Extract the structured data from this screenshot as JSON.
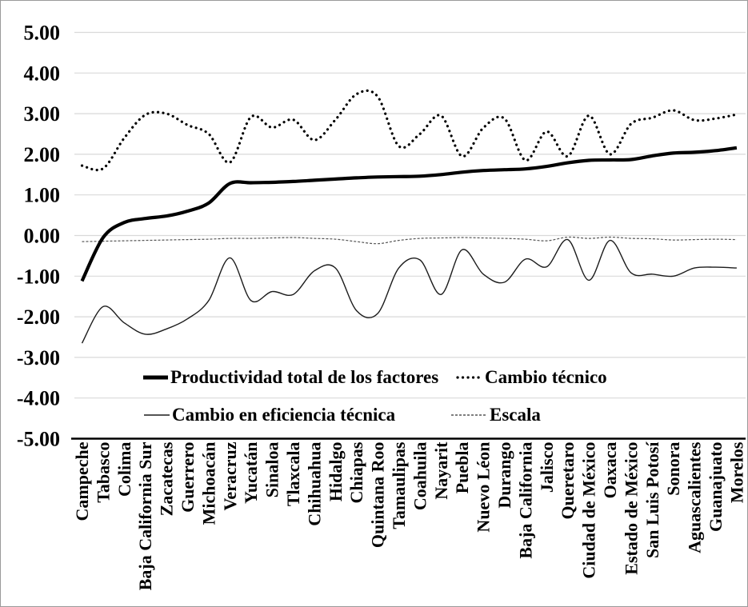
{
  "colors": {
    "series_line": "#000000",
    "thin_line": "#1c1c1c",
    "escala_line": "#555555",
    "grid": "#d9d9d9",
    "axis": "#000000",
    "background": "#ffffff",
    "frame_border": "#9a9a9a"
  },
  "chart_data": {
    "type": "line",
    "grid": true,
    "legend_position": "inside-bottom",
    "categories": [
      "Campeche",
      "Tabasco",
      "Colima",
      "Baja California Sur",
      "Zacatecas",
      "Guerrero",
      "Michoacán",
      "Veracruz",
      "Yucatán",
      "Sinaloa",
      "Tlaxcala",
      "Chihuahua",
      "Hidalgo",
      "Chiapas",
      "Quintana Roo",
      "Tamaulipas",
      "Coahuila",
      "Nayarit",
      "Puebla",
      "Nuevo Léon",
      "Durango",
      "Baja California",
      "Jalisco",
      "Queretaro",
      "Ciudad de México",
      "Oaxaca",
      "Estado de México",
      "San Luis Potosí",
      "Sonora",
      "Aguascalientes",
      "Guanajuato",
      "Morelos"
    ],
    "y_axis": {
      "min": -5,
      "max": 5,
      "step": 1,
      "tick_labels": [
        "5.00",
        "4.00",
        "3.00",
        "2.00",
        "1.00",
        "0.00",
        "-1.00",
        "-2.00",
        "-3.00",
        "-4.00",
        "-5.00"
      ]
    },
    "series": [
      {
        "name": "Productividad total de los factores",
        "style": "thick-solid",
        "values": [
          -1.12,
          -0.05,
          0.32,
          0.42,
          0.48,
          0.6,
          0.8,
          1.28,
          1.3,
          1.31,
          1.33,
          1.36,
          1.39,
          1.42,
          1.44,
          1.45,
          1.46,
          1.5,
          1.56,
          1.6,
          1.62,
          1.64,
          1.7,
          1.79,
          1.85,
          1.86,
          1.87,
          1.96,
          2.03,
          2.05,
          2.09,
          2.16
        ]
      },
      {
        "name": "Cambio técnico",
        "style": "dotted",
        "values": [
          1.72,
          1.65,
          2.4,
          2.97,
          3.0,
          2.72,
          2.5,
          1.8,
          2.92,
          2.66,
          2.85,
          2.35,
          2.85,
          3.48,
          3.42,
          2.2,
          2.5,
          2.95,
          1.95,
          2.65,
          2.88,
          1.85,
          2.56,
          1.95,
          2.95,
          2.0,
          2.75,
          2.9,
          3.08,
          2.84,
          2.88,
          2.98
        ]
      },
      {
        "name": "Cambio en eficiencia técnica",
        "style": "thin-solid",
        "values": [
          -2.65,
          -1.75,
          -2.15,
          -2.43,
          -2.3,
          -2.05,
          -1.6,
          -0.55,
          -1.6,
          -1.38,
          -1.45,
          -0.87,
          -0.8,
          -1.85,
          -1.92,
          -0.8,
          -0.6,
          -1.45,
          -0.35,
          -0.95,
          -1.15,
          -0.58,
          -0.77,
          -0.1,
          -1.1,
          -0.12,
          -0.92,
          -0.95,
          -1.0,
          -0.8,
          -0.78,
          -0.8
        ]
      },
      {
        "name": "Escala",
        "style": "fine-dashed",
        "values": [
          -0.15,
          -0.14,
          -0.13,
          -0.12,
          -0.11,
          -0.1,
          -0.09,
          -0.07,
          -0.07,
          -0.06,
          -0.05,
          -0.07,
          -0.09,
          -0.15,
          -0.2,
          -0.12,
          -0.07,
          -0.06,
          -0.05,
          -0.06,
          -0.07,
          -0.09,
          -0.13,
          -0.04,
          -0.07,
          -0.04,
          -0.07,
          -0.08,
          -0.11,
          -0.1,
          -0.09,
          -0.1
        ]
      }
    ]
  }
}
